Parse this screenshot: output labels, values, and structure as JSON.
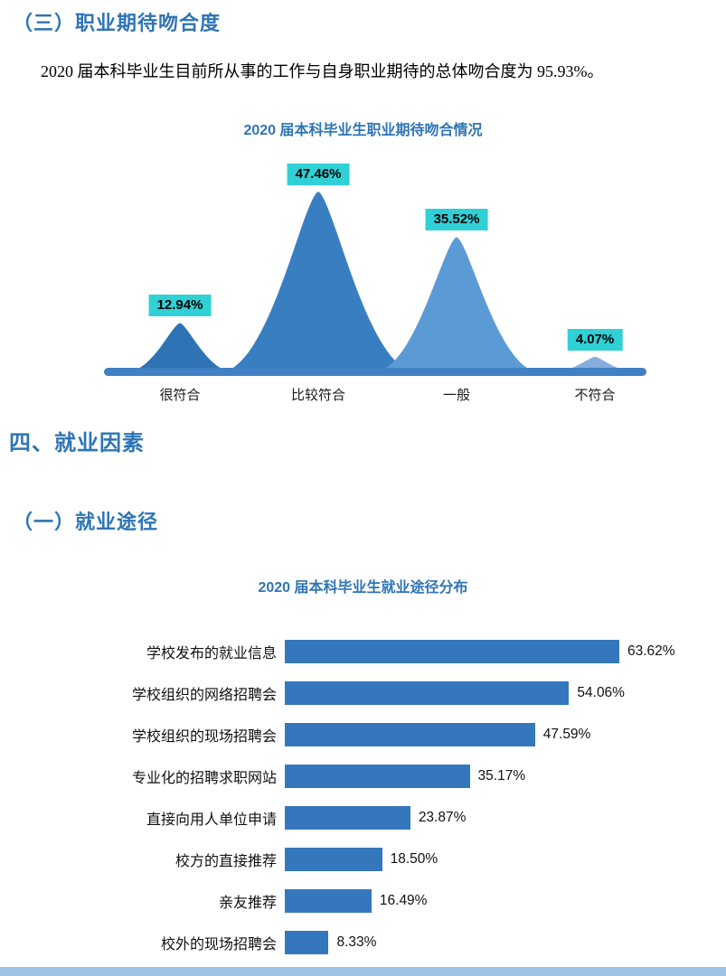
{
  "page": {
    "section3_heading": "（三）职业期待吻合度",
    "paragraph": "2020 届本科毕业生目前所从事的工作与自身职业期待的总体吻合度为 95.93%。",
    "section4_heading": "四、就业因素",
    "subsection_heading": "（一）就业途径"
  },
  "colors": {
    "heading_blue": "#2e74b5",
    "bottom_band": "#9cc3e6"
  },
  "chart_data": [
    {
      "type": "area",
      "title": "2020 届本科毕业生职业期待吻合情况",
      "categories": [
        "很符合",
        "比较符合",
        "一般",
        "不符合"
      ],
      "values": [
        12.94,
        47.46,
        35.52,
        4.07
      ],
      "labels": [
        "12.94%",
        "47.46%",
        "35.52%",
        "4.07%"
      ],
      "colors": [
        "#2e74b5",
        "#3a7ec2",
        "#5b9bd5",
        "#85aedd"
      ],
      "baseline_color": "#4080c4",
      "badge_color": "#2fd0d6",
      "ylim": [
        0,
        50
      ],
      "legend": false,
      "grid": false
    },
    {
      "type": "bar",
      "orientation": "horizontal",
      "title": "2020 届本科毕业生就业途径分布",
      "categories": [
        "学校发布的就业信息",
        "学校组织的网络招聘会",
        "学校组织的现场招聘会",
        "专业化的招聘求职网站",
        "直接向用人单位申请",
        "校方的直接推荐",
        "亲友推荐",
        "校外的现场招聘会"
      ],
      "values": [
        63.62,
        54.06,
        47.59,
        35.17,
        23.87,
        18.5,
        16.49,
        8.33
      ],
      "labels": [
        "63.62%",
        "54.06%",
        "47.59%",
        "35.17%",
        "23.87%",
        "18.50%",
        "16.49%",
        "8.33%"
      ],
      "bar_color": "#3577bd",
      "xlim": [
        0,
        70
      ],
      "legend": false,
      "grid": false
    }
  ]
}
